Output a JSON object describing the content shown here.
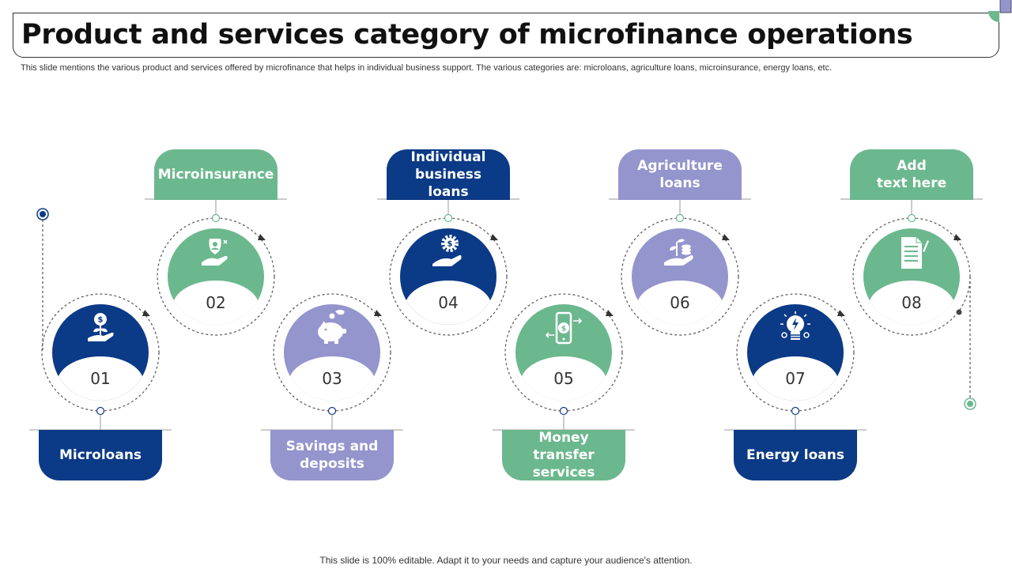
{
  "title": "Product and services category of microfinance operations",
  "subtitle": "This slide mentions the various product and services offered by microfinance that helps in individual business support. The various categories are: microloans, agriculture loans, microinsurance, energy loans, etc.",
  "footer": "This slide is 100% editable. Adapt it to your needs and capture your audience's attention.",
  "colors": {
    "navy": "#0b3a86",
    "green": "#6cb88e",
    "purple": "#9495cd",
    "dash": "#555555"
  },
  "items": [
    {
      "number": "01",
      "label": "Microloans",
      "color": "navy",
      "icon": "money-plant-hand-icon"
    },
    {
      "number": "02",
      "label": "Microinsurance",
      "color": "green",
      "icon": "shield-person-hand-icon"
    },
    {
      "number": "03",
      "label": "Savings and\ndeposits",
      "color": "purple",
      "icon": "piggy-bank-icon"
    },
    {
      "number": "04",
      "label": "Individual\nbusiness loans",
      "color": "navy",
      "icon": "gear-dollar-hand-icon"
    },
    {
      "number": "05",
      "label": "Money transfer\nservices",
      "color": "green",
      "icon": "mobile-transfer-icon"
    },
    {
      "number": "06",
      "label": "Agriculture\nloans",
      "color": "purple",
      "icon": "plant-coins-hand-icon"
    },
    {
      "number": "07",
      "label": "Energy loans",
      "color": "navy",
      "icon": "lightbulb-gear-icon"
    },
    {
      "number": "08",
      "label": "Add\ntext here",
      "color": "green",
      "icon": "document-icon"
    }
  ]
}
